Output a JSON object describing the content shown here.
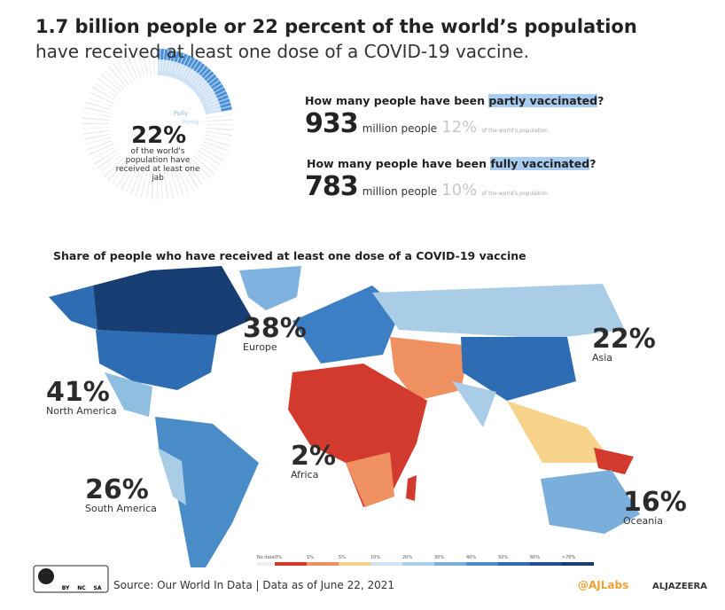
{
  "header": {
    "title": "1.7 billion people or 22 percent of the world’s population",
    "subtitle": "have received at least one dose of a COVID-19 vaccine."
  },
  "donut": {
    "percent": "22%",
    "caption": "of the world's population have received at least one jab",
    "fully_label": "Fully",
    "partly_label": "Partly"
  },
  "stats": [
    {
      "question": "How many people have been ",
      "highlight": "partly vaccinated",
      "end": "?",
      "number": "933",
      "unit": "million people",
      "pct": "12%",
      "note": "of the world's population"
    },
    {
      "question": "How many people have been ",
      "highlight": "fully vaccinated",
      "end": "?",
      "number": "783",
      "unit": "million people",
      "pct": "10%",
      "note": "of the world's population"
    }
  ],
  "map": {
    "title": "Share of people who have received at least one dose of a COVID-19 vaccine",
    "regions": [
      {
        "pct": "38%",
        "name": "Europe"
      },
      {
        "pct": "22%",
        "name": "Asia"
      },
      {
        "pct": "41%",
        "name": "North America"
      },
      {
        "pct": "2%",
        "name": "Africa"
      },
      {
        "pct": "26%",
        "name": "South America"
      },
      {
        "pct": "16%",
        "name": "Oceania"
      }
    ],
    "legend": [
      {
        "label": "No data",
        "color": "#eeeeee"
      },
      {
        "label": "0%",
        "color": "#d23a2e"
      },
      {
        "label": "1%",
        "color": "#ef9060"
      },
      {
        "label": "5%",
        "color": "#f6d28a"
      },
      {
        "label": "10%",
        "color": "#cfe2f0"
      },
      {
        "label": "20%",
        "color": "#a9cde6"
      },
      {
        "label": "30%",
        "color": "#7aaedb"
      },
      {
        "label": "40%",
        "color": "#4a8cc8"
      },
      {
        "label": "50%",
        "color": "#2e6db4"
      },
      {
        "label": "60%",
        "color": "#1f4f92"
      },
      {
        "label": ">70%",
        "color": "#173d72"
      }
    ]
  },
  "footer": {
    "cc": [
      "BY",
      "NC",
      "SA"
    ],
    "source": "Source: Our World In Data | Data as of June 22, 2021",
    "handle": "@AJLabs",
    "brand": "ALJAZEERA"
  }
}
